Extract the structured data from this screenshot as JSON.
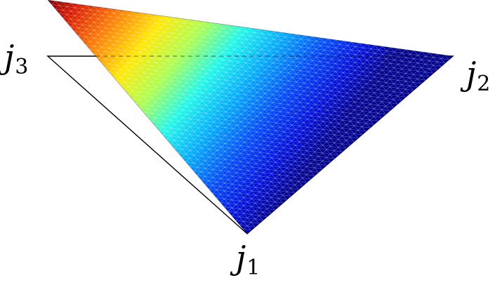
{
  "labels": {
    "j1": {
      "base": "j",
      "sub": "1"
    },
    "j2": {
      "base": "j",
      "sub": "2"
    },
    "j3": {
      "base": "j",
      "sub": "3"
    }
  },
  "colors": {
    "outline": "#000000",
    "mesh_lines": "#ffffff",
    "colormap": "jet",
    "high": "#8b0000",
    "low": "#00008f"
  }
}
